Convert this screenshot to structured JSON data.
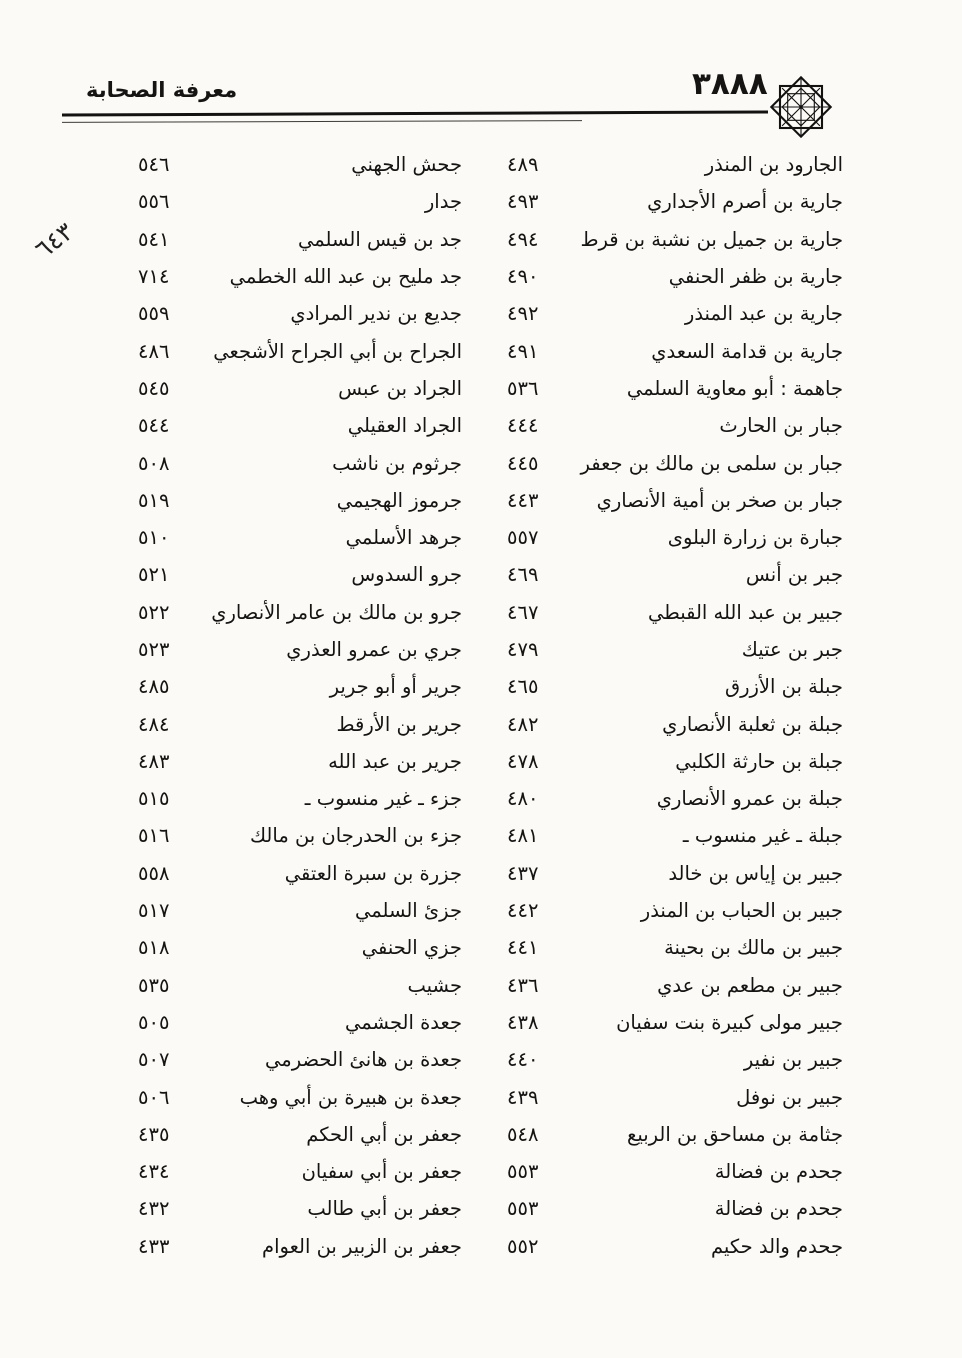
{
  "header": {
    "title": "معرفة الصحابة",
    "page_number": "٣٨٨٨",
    "ornament_icon": "eight-pointed-star"
  },
  "margin_note": "٦٤٣",
  "ink_color": "#161412",
  "paper_color": "#fbfaf7",
  "columns": {
    "right": {
      "entries": [
        {
          "name": "الجارود بن المنذر",
          "page": "٤٨٩"
        },
        {
          "name": "جارية بن أصرم الأجداري",
          "page": "٤٩٣"
        },
        {
          "name": "جارية بن جميل بن نشبة بن قرط",
          "page": "٤٩٤"
        },
        {
          "name": "جارية بن ظفر الحنفي",
          "page": "٤٩٠"
        },
        {
          "name": "جارية بن عبد المنذر",
          "page": "٤٩٢"
        },
        {
          "name": "جارية بن قدامة السعدي",
          "page": "٤٩١"
        },
        {
          "name": "جاهمة : أبو معاوية السلمي",
          "page": "٥٣٦"
        },
        {
          "name": "جبار بن الحارث",
          "page": "٤٤٤"
        },
        {
          "name": "جبار بن سلمى بن مالك بن جعفر",
          "page": "٤٤٥"
        },
        {
          "name": "جبار بن صخر بن أمية الأنصاري",
          "page": "٤٤٣"
        },
        {
          "name": "جبارة بن زرارة البلوى",
          "page": "٥٥٧"
        },
        {
          "name": "جبر بن أنس",
          "page": "٤٦٩"
        },
        {
          "name": "جبير بن عبد الله القبطي",
          "page": "٤٦٧"
        },
        {
          "name": "جبر بن عتيك",
          "page": "٤٧٩"
        },
        {
          "name": "جبلة بن الأزرق",
          "page": "٤٦٥"
        },
        {
          "name": "جبلة بن ثعلبة الأنصاري",
          "page": "٤٨٢"
        },
        {
          "name": "جبلة بن حارثة الكلبي",
          "page": "٤٧٨"
        },
        {
          "name": "جبلة بن عمرو الأنصاري",
          "page": "٤٨٠"
        },
        {
          "name": "جبلة ـ غير منسوب ـ",
          "page": "٤٨١"
        },
        {
          "name": "جبير بن إياس بن خالد",
          "page": "٤٣٧"
        },
        {
          "name": "جبير بن الحباب بن المنذر",
          "page": "٤٤٢"
        },
        {
          "name": "جبير بن مالك بن بحينة",
          "page": "٤٤١"
        },
        {
          "name": "جبير بن مطعم بن عدي",
          "page": "٤٣٦"
        },
        {
          "name": "جبير مولى كبيرة بنت سفيان",
          "page": "٤٣٨"
        },
        {
          "name": "جبير بن نفير",
          "page": "٤٤٠"
        },
        {
          "name": "جبير بن نوفل",
          "page": "٤٣٩"
        },
        {
          "name": "جثامة بن مساحق بن الربيع",
          "page": "٥٤٨"
        },
        {
          "name": "جحدم بن فضالة",
          "page": "٥٥٣"
        },
        {
          "name": "جحدم بن فضالة",
          "page": "٥٥٣"
        },
        {
          "name": "جحدم والد حكيم",
          "page": "٥٥٢"
        }
      ]
    },
    "left": {
      "entries": [
        {
          "name": "جحش الجهني",
          "page": "٥٤٦"
        },
        {
          "name": "جدار",
          "page": "٥٥٦"
        },
        {
          "name": "جد بن قيس السلمي",
          "page": "٥٤١"
        },
        {
          "name": "جد مليح بن عبد الله الخطمي",
          "page": "٧١٤"
        },
        {
          "name": "جديع بن ندير المرادي",
          "page": "٥٥٩"
        },
        {
          "name": "الجراح بن أبي الجراح الأشجعي",
          "page": "٤٨٦"
        },
        {
          "name": "الجراد بن عبس",
          "page": "٥٤٥"
        },
        {
          "name": "الجراد العقيلي",
          "page": "٥٤٤"
        },
        {
          "name": "جرثوم بن ناشب",
          "page": "٥٠٨"
        },
        {
          "name": "جرموز الهجيمي",
          "page": "٥١٩"
        },
        {
          "name": "جرهد الأسلمي",
          "page": "٥١٠"
        },
        {
          "name": "جرو السدوس",
          "page": "٥٢١"
        },
        {
          "name": "جرو بن مالك بن عامر الأنصاري",
          "page": "٥٢٢"
        },
        {
          "name": "جري بن عمرو العذري",
          "page": "٥٢٣"
        },
        {
          "name": "جرير أو أبو جرير",
          "page": "٤٨٥"
        },
        {
          "name": "جرير بن الأرقط",
          "page": "٤٨٤"
        },
        {
          "name": "جرير بن عبد الله",
          "page": "٤٨٣"
        },
        {
          "name": "جزء ـ غير منسوب ـ",
          "page": "٥١٥"
        },
        {
          "name": "جزء بن الحدرجان بن مالك",
          "page": "٥١٦"
        },
        {
          "name": "جزرة بن سبرة العتقي",
          "page": "٥٥٨"
        },
        {
          "name": "جزئ السلمي",
          "page": "٥١٧"
        },
        {
          "name": "جزي الحنفي",
          "page": "٥١٨"
        },
        {
          "name": "جشيب",
          "page": "٥٣٥"
        },
        {
          "name": "جعدة الجشمي",
          "page": "٥٠٥"
        },
        {
          "name": "جعدة بن هانئ الحضرمي",
          "page": "٥٠٧"
        },
        {
          "name": "جعدة بن هبيرة بن أبي وهب",
          "page": "٥٠٦"
        },
        {
          "name": "جعفر بن أبي الحكم",
          "page": "٤٣٥"
        },
        {
          "name": "جعفر بن أبي سفيان",
          "page": "٤٣٤"
        },
        {
          "name": "جعفر بن أبي طالب",
          "page": "٤٣٢"
        },
        {
          "name": "جعفر بن الزبير بن العوام",
          "page": "٤٣٣"
        }
      ]
    }
  }
}
